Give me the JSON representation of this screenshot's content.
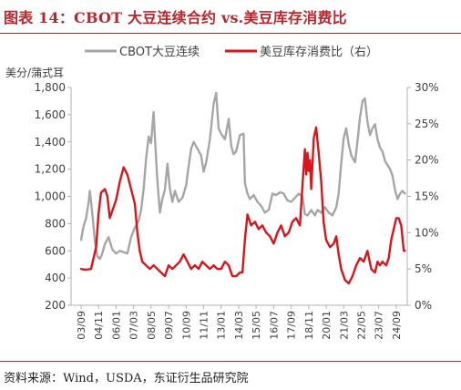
{
  "figure": {
    "title": "图表 14：CBOT 大豆连续合约 vs.美豆库存消费比",
    "source": "资料来源：Wind，USDA，东证衍生品研究院"
  },
  "colors": {
    "title": "#b8262b",
    "price_line": "#a6a6a6",
    "ratio_line": "#d9141c",
    "axis": "#b0b0b0",
    "text": "#404040"
  },
  "chart_data": {
    "type": "line",
    "title": "",
    "ylabel": "美分/蒲式耳",
    "y2label": "",
    "xlabel": "",
    "grid": false,
    "legend": "top-center",
    "xlim": [
      2003.0,
      2025.4
    ],
    "ylim": [
      200,
      1800
    ],
    "y2lim": [
      0,
      30
    ],
    "y_ticks": [
      200,
      400,
      600,
      800,
      1000,
      1200,
      1400,
      1600,
      1800
    ],
    "y_tick_labels": [
      "200",
      "400",
      "600",
      "800",
      "1,000",
      "1,200",
      "1,400",
      "1,600",
      "1,800"
    ],
    "y2_ticks": [
      0,
      5,
      10,
      15,
      20,
      25,
      30
    ],
    "y2_tick_labels": [
      "0%",
      "5%",
      "10%",
      "15%",
      "20%",
      "25%",
      "30%"
    ],
    "x_ticks": [
      2003.67,
      2004.83,
      2006.0,
      2007.17,
      2008.33,
      2009.5,
      2010.67,
      2011.83,
      2013.0,
      2014.17,
      2015.33,
      2016.5,
      2017.67,
      2018.83,
      2020.0,
      2021.17,
      2022.33,
      2023.5,
      2024.67
    ],
    "x_tick_labels": [
      "03/09",
      "04/11",
      "06/01",
      "07/03",
      "08/05",
      "09/07",
      "10/09",
      "11/11",
      "13/01",
      "14/03",
      "15/05",
      "16/07",
      "17/09",
      "18/11",
      "20/01",
      "21/03",
      "22/05",
      "23/07",
      "24/09"
    ],
    "series": [
      {
        "name": "CBOT大豆连续",
        "axis": "left",
        "color": "#a6a6a6",
        "x": [
          2003.67,
          2003.83,
          2004.0,
          2004.17,
          2004.25,
          2004.42,
          2004.58,
          2004.75,
          2004.92,
          2005.08,
          2005.25,
          2005.5,
          2005.75,
          2006.0,
          2006.25,
          2006.5,
          2006.75,
          2007.0,
          2007.25,
          2007.5,
          2007.67,
          2007.83,
          2008.0,
          2008.17,
          2008.33,
          2008.5,
          2008.58,
          2008.75,
          2008.92,
          2009.08,
          2009.25,
          2009.42,
          2009.58,
          2009.75,
          2009.92,
          2010.17,
          2010.42,
          2010.67,
          2010.83,
          2011.0,
          2011.17,
          2011.42,
          2011.67,
          2011.83,
          2012.0,
          2012.25,
          2012.5,
          2012.67,
          2012.83,
          2013.0,
          2013.25,
          2013.5,
          2013.67,
          2013.83,
          2014.0,
          2014.25,
          2014.5,
          2014.58,
          2014.75,
          2014.92,
          2015.17,
          2015.42,
          2015.67,
          2015.92,
          2016.17,
          2016.42,
          2016.67,
          2016.92,
          2017.17,
          2017.42,
          2017.67,
          2017.92,
          2018.17,
          2018.42,
          2018.58,
          2018.75,
          2019.0,
          2019.25,
          2019.42,
          2019.67,
          2019.92,
          2020.17,
          2020.42,
          2020.67,
          2020.83,
          2021.0,
          2021.17,
          2021.33,
          2021.5,
          2021.67,
          2021.92,
          2022.08,
          2022.25,
          2022.42,
          2022.58,
          2022.75,
          2022.92,
          2023.08,
          2023.25,
          2023.42,
          2023.58,
          2023.75,
          2023.92,
          2024.08,
          2024.25,
          2024.42,
          2024.58,
          2024.75,
          2024.92,
          2025.08,
          2025.25
        ],
        "y": [
          680,
          780,
          840,
          960,
          1040,
          870,
          680,
          560,
          540,
          580,
          650,
          700,
          610,
          580,
          600,
          590,
          580,
          700,
          770,
          820,
          900,
          1050,
          1280,
          1440,
          1390,
          1620,
          1450,
          1120,
          880,
          980,
          1050,
          1240,
          1060,
          960,
          1040,
          960,
          990,
          1080,
          1220,
          1350,
          1400,
          1350,
          1300,
          1180,
          1250,
          1420,
          1680,
          1760,
          1500,
          1460,
          1420,
          1570,
          1370,
          1310,
          1330,
          1450,
          1460,
          1100,
          1020,
          980,
          1010,
          960,
          930,
          880,
          900,
          1020,
          1010,
          1030,
          1020,
          970,
          960,
          990,
          1020,
          1000,
          870,
          860,
          900,
          860,
          900,
          880,
          920,
          880,
          860,
          920,
          1020,
          1240,
          1430,
          1500,
          1380,
          1300,
          1250,
          1400,
          1580,
          1700,
          1720,
          1550,
          1450,
          1500,
          1530,
          1420,
          1360,
          1330,
          1260,
          1230,
          1200,
          1150,
          1050,
          980,
          1020,
          1040,
          1020
        ]
      },
      {
        "name": "美豆库存消费比（右）",
        "axis": "right",
        "color": "#d9141c",
        "x": [
          2003.67,
          2004.0,
          2004.33,
          2004.67,
          2004.83,
          2005.0,
          2005.25,
          2005.42,
          2005.58,
          2005.75,
          2006.0,
          2006.25,
          2006.5,
          2006.75,
          2007.0,
          2007.25,
          2007.42,
          2007.58,
          2007.75,
          2008.0,
          2008.25,
          2008.5,
          2008.75,
          2009.0,
          2009.25,
          2009.5,
          2009.75,
          2010.0,
          2010.25,
          2010.5,
          2010.75,
          2011.0,
          2011.25,
          2011.5,
          2011.75,
          2012.0,
          2012.25,
          2012.5,
          2012.75,
          2013.0,
          2013.25,
          2013.5,
          2013.75,
          2014.0,
          2014.25,
          2014.42,
          2014.58,
          2014.75,
          2015.0,
          2015.25,
          2015.5,
          2015.75,
          2016.0,
          2016.25,
          2016.5,
          2016.75,
          2017.0,
          2017.25,
          2017.5,
          2017.75,
          2018.0,
          2018.25,
          2018.5,
          2018.58,
          2018.67,
          2018.75,
          2018.83,
          2018.92,
          2019.0,
          2019.17,
          2019.33,
          2019.5,
          2019.67,
          2019.83,
          2020.0,
          2020.25,
          2020.5,
          2020.67,
          2020.83,
          2021.0,
          2021.25,
          2021.5,
          2021.75,
          2022.0,
          2022.25,
          2022.5,
          2022.75,
          2023.0,
          2023.25,
          2023.42,
          2023.58,
          2023.75,
          2024.0,
          2024.17,
          2024.33,
          2024.5,
          2024.67,
          2024.83,
          2025.0,
          2025.17,
          2025.25
        ],
        "y": [
          5.0,
          4.9,
          5.0,
          8.0,
          12.5,
          15.5,
          16.0,
          15.0,
          12.0,
          13.0,
          14.5,
          17.0,
          19.0,
          18.0,
          16.0,
          14.0,
          10.0,
          7.5,
          6.0,
          5.5,
          5.0,
          5.5,
          5.0,
          4.5,
          4.0,
          5.5,
          5.0,
          5.5,
          6.0,
          7.0,
          6.0,
          5.0,
          5.5,
          5.0,
          6.0,
          5.5,
          5.0,
          5.5,
          5.0,
          5.0,
          6.0,
          5.5,
          4.0,
          4.0,
          4.5,
          4.5,
          9.0,
          12.5,
          11.0,
          11.5,
          10.5,
          11.0,
          10.0,
          9.5,
          8.5,
          10.0,
          11.0,
          9.5,
          10.0,
          11.5,
          12.0,
          11.0,
          19.0,
          21.5,
          18.0,
          21.0,
          18.5,
          20.0,
          16.0,
          23.0,
          24.5,
          21.0,
          17.0,
          11.5,
          9.0,
          8.0,
          8.5,
          9.5,
          7.0,
          5.0,
          3.5,
          3.0,
          4.0,
          5.5,
          6.5,
          6.0,
          7.5,
          5.0,
          4.5,
          6.0,
          5.5,
          6.0,
          5.5,
          6.5,
          9.0,
          10.5,
          12.0,
          12.0,
          11.0,
          7.5,
          7.5
        ]
      }
    ]
  }
}
